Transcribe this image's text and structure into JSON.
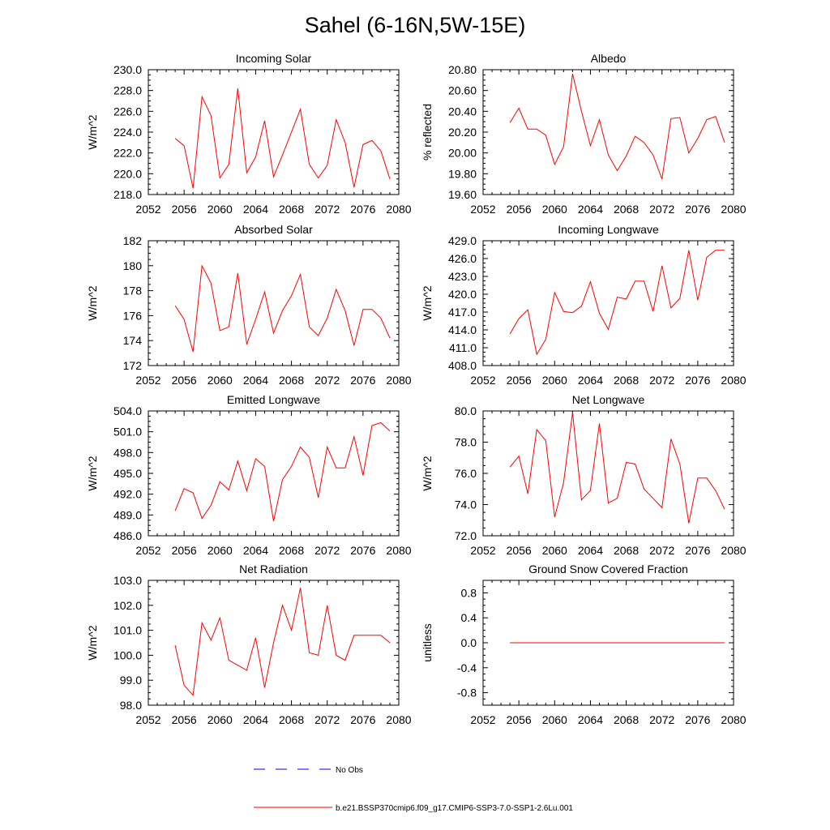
{
  "figure": {
    "title": "Sahel (6-16N,5W-15E)",
    "colors": {
      "model": "#ff0000",
      "obs": "#0000ff",
      "axis": "#000000"
    },
    "legend": [
      {
        "label": "No Obs",
        "style": "dashed",
        "color": "#0000ff"
      },
      {
        "label": "b.e21.BSSP370cmip6.f09_g17.CMIP6-SSP3-7.0-SSP1-2.6Lu.001",
        "style": "solid",
        "color": "#ff0000"
      }
    ]
  },
  "chart_data": [
    {
      "type": "line",
      "title": "Incoming Solar",
      "ylabel": "W/m^2",
      "xlim": [
        2052,
        2080
      ],
      "ylim": [
        218.0,
        230.0
      ],
      "xticks": [
        2052,
        2056,
        2060,
        2064,
        2068,
        2072,
        2076,
        2080
      ],
      "yticks": [
        "218.0",
        "220.0",
        "222.0",
        "224.0",
        "226.0",
        "228.0",
        "230.0"
      ],
      "series": [
        {
          "x": [
            2055,
            2056,
            2057,
            2058,
            2059,
            2060,
            2061,
            2062,
            2063,
            2064,
            2065,
            2066,
            2067,
            2068,
            2069,
            2070,
            2071,
            2072,
            2073,
            2074,
            2075,
            2076,
            2077,
            2078,
            2079
          ],
          "values": [
            223.4,
            222.7,
            218.6,
            227.4,
            225.6,
            219.6,
            220.9,
            228.2,
            220.1,
            221.6,
            225.1,
            219.7,
            221.8,
            224.0,
            226.2,
            220.9,
            219.6,
            220.8,
            225.2,
            223.0,
            218.7,
            222.8,
            223.2,
            222.2,
            219.5
          ]
        }
      ]
    },
    {
      "type": "line",
      "title": "Albedo",
      "ylabel": "% reflected",
      "xlim": [
        2052,
        2080
      ],
      "ylim": [
        19.6,
        20.8
      ],
      "xticks": [
        2052,
        2056,
        2060,
        2064,
        2068,
        2072,
        2076,
        2080
      ],
      "yticks": [
        "19.60",
        "19.80",
        "20.00",
        "20.20",
        "20.40",
        "20.60",
        "20.80"
      ],
      "series": [
        {
          "x": [
            2055,
            2056,
            2057,
            2058,
            2059,
            2060,
            2061,
            2062,
            2063,
            2064,
            2065,
            2066,
            2067,
            2068,
            2069,
            2070,
            2071,
            2072,
            2073,
            2074,
            2075,
            2076,
            2077,
            2078,
            2079
          ],
          "values": [
            20.29,
            20.43,
            20.23,
            20.23,
            20.17,
            19.89,
            20.06,
            20.76,
            20.4,
            20.07,
            20.32,
            19.98,
            19.83,
            19.97,
            20.16,
            20.1,
            19.98,
            19.75,
            20.33,
            20.34,
            20.0,
            20.14,
            20.32,
            20.35,
            20.1
          ]
        }
      ]
    },
    {
      "type": "line",
      "title": "Absorbed Solar",
      "ylabel": "W/m^2",
      "xlim": [
        2052,
        2080
      ],
      "ylim": [
        172,
        182
      ],
      "xticks": [
        2052,
        2056,
        2060,
        2064,
        2068,
        2072,
        2076,
        2080
      ],
      "yticks": [
        "172",
        "174",
        "176",
        "178",
        "180",
        "182"
      ],
      "series": [
        {
          "x": [
            2055,
            2056,
            2057,
            2058,
            2059,
            2060,
            2061,
            2062,
            2063,
            2064,
            2065,
            2066,
            2067,
            2068,
            2069,
            2070,
            2071,
            2072,
            2073,
            2074,
            2075,
            2076,
            2077,
            2078,
            2079
          ],
          "values": [
            176.8,
            175.7,
            173.1,
            180.0,
            178.6,
            174.8,
            175.1,
            179.4,
            173.7,
            175.7,
            177.9,
            174.6,
            176.4,
            177.6,
            179.3,
            175.1,
            174.4,
            175.8,
            178.1,
            176.4,
            173.6,
            176.5,
            176.5,
            175.8,
            174.2
          ]
        }
      ]
    },
    {
      "type": "line",
      "title": "Incoming Longwave",
      "ylabel": "W/m^2",
      "xlim": [
        2052,
        2080
      ],
      "ylim": [
        408.0,
        429.0
      ],
      "xticks": [
        2052,
        2056,
        2060,
        2064,
        2068,
        2072,
        2076,
        2080
      ],
      "yticks": [
        "408.0",
        "411.0",
        "414.0",
        "417.0",
        "420.0",
        "423.0",
        "426.0",
        "429.0"
      ],
      "series": [
        {
          "x": [
            2055,
            2056,
            2057,
            2058,
            2059,
            2060,
            2061,
            2062,
            2063,
            2064,
            2065,
            2066,
            2067,
            2068,
            2069,
            2070,
            2071,
            2072,
            2073,
            2074,
            2075,
            2076,
            2077,
            2078,
            2079
          ],
          "values": [
            413.3,
            415.9,
            417.4,
            409.9,
            412.4,
            420.3,
            417.1,
            416.9,
            418.0,
            422.1,
            416.8,
            414.1,
            419.5,
            419.2,
            422.2,
            422.2,
            417.1,
            424.8,
            417.7,
            419.3,
            427.4,
            419.0,
            426.2,
            427.4,
            427.4
          ]
        }
      ]
    },
    {
      "type": "line",
      "title": "Emitted Longwave",
      "ylabel": "W/m^2",
      "xlim": [
        2052,
        2080
      ],
      "ylim": [
        486.0,
        504.0
      ],
      "xticks": [
        2052,
        2056,
        2060,
        2064,
        2068,
        2072,
        2076,
        2080
      ],
      "yticks": [
        "486.0",
        "489.0",
        "492.0",
        "495.0",
        "498.0",
        "501.0",
        "504.0"
      ],
      "series": [
        {
          "x": [
            2055,
            2056,
            2057,
            2058,
            2059,
            2060,
            2061,
            2062,
            2063,
            2064,
            2065,
            2066,
            2067,
            2068,
            2069,
            2070,
            2071,
            2072,
            2073,
            2074,
            2075,
            2076,
            2077,
            2078,
            2079
          ],
          "values": [
            489.6,
            492.8,
            492.2,
            488.5,
            490.4,
            493.8,
            492.6,
            496.8,
            492.5,
            497.1,
            496.0,
            488.1,
            494.1,
            496.0,
            498.8,
            497.3,
            491.5,
            498.8,
            495.8,
            495.8,
            500.3,
            494.7,
            501.9,
            502.3,
            501.1
          ]
        }
      ]
    },
    {
      "type": "line",
      "title": "Net Longwave",
      "ylabel": "W/m^2",
      "xlim": [
        2052,
        2080
      ],
      "ylim": [
        72.0,
        80.0
      ],
      "xticks": [
        2052,
        2056,
        2060,
        2064,
        2068,
        2072,
        2076,
        2080
      ],
      "yticks": [
        "72.0",
        "74.0",
        "76.0",
        "78.0",
        "80.0"
      ],
      "series": [
        {
          "x": [
            2055,
            2056,
            2057,
            2058,
            2059,
            2060,
            2061,
            2062,
            2063,
            2064,
            2065,
            2066,
            2067,
            2068,
            2069,
            2070,
            2071,
            2072,
            2073,
            2074,
            2075,
            2076,
            2077,
            2078,
            2079
          ],
          "values": [
            76.4,
            77.1,
            74.7,
            78.8,
            78.1,
            73.2,
            75.4,
            79.9,
            74.3,
            74.9,
            79.2,
            74.1,
            74.4,
            76.7,
            76.6,
            75.0,
            74.4,
            73.8,
            78.2,
            76.6,
            72.8,
            75.7,
            75.7,
            74.9,
            73.7
          ]
        }
      ]
    },
    {
      "type": "line",
      "title": "Net Radiation",
      "ylabel": "W/m^2",
      "xlim": [
        2052,
        2080
      ],
      "ylim": [
        98.0,
        103.0
      ],
      "xticks": [
        2052,
        2056,
        2060,
        2064,
        2068,
        2072,
        2076,
        2080
      ],
      "yticks": [
        "98.0",
        "99.0",
        "100.0",
        "101.0",
        "102.0",
        "103.0"
      ],
      "series": [
        {
          "x": [
            2055,
            2056,
            2057,
            2058,
            2059,
            2060,
            2061,
            2062,
            2063,
            2064,
            2065,
            2066,
            2067,
            2068,
            2069,
            2070,
            2071,
            2072,
            2073,
            2074,
            2075,
            2076,
            2077,
            2078,
            2079
          ],
          "values": [
            100.4,
            98.8,
            98.4,
            101.3,
            100.6,
            101.5,
            99.8,
            99.6,
            99.4,
            100.7,
            98.7,
            100.5,
            102.0,
            101.0,
            102.7,
            100.1,
            100.0,
            102.0,
            100.0,
            99.8,
            100.8,
            100.8,
            100.8,
            100.8,
            100.5
          ]
        }
      ]
    },
    {
      "type": "line",
      "title": "Ground Snow Covered Fraction",
      "ylabel": "unitless",
      "xlim": [
        2052,
        2080
      ],
      "ylim": [
        -1.0,
        1.0
      ],
      "xticks": [
        2052,
        2056,
        2060,
        2064,
        2068,
        2072,
        2076,
        2080
      ],
      "yticks": [
        "-0.8",
        "-0.4",
        "0.0",
        "0.4",
        "0.8"
      ],
      "series": [
        {
          "x": [
            2055,
            2056,
            2057,
            2058,
            2059,
            2060,
            2061,
            2062,
            2063,
            2064,
            2065,
            2066,
            2067,
            2068,
            2069,
            2070,
            2071,
            2072,
            2073,
            2074,
            2075,
            2076,
            2077,
            2078,
            2079
          ],
          "values": [
            0,
            0,
            0,
            0,
            0,
            0,
            0,
            0,
            0,
            0,
            0,
            0,
            0,
            0,
            0,
            0,
            0,
            0,
            0,
            0,
            0,
            0,
            0,
            0,
            0
          ]
        }
      ]
    }
  ]
}
